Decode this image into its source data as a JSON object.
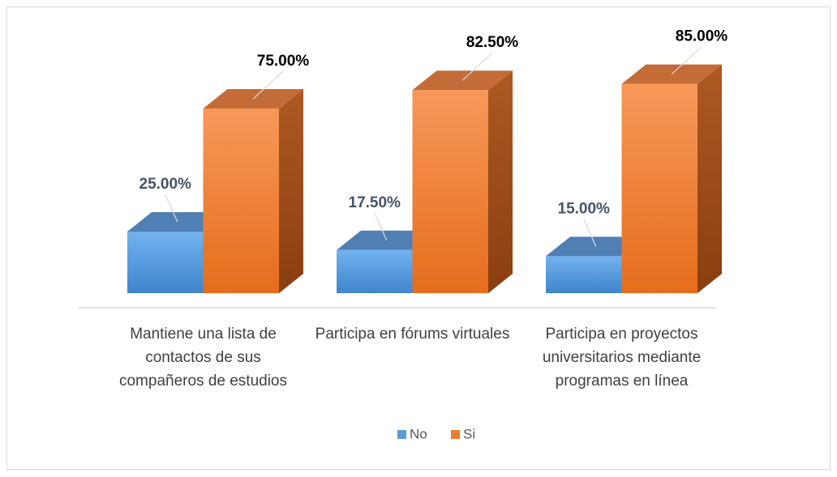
{
  "chart_data": {
    "type": "bar3d",
    "categories": [
      "Mantiene una lista de contactos de sus compañeros de estudios",
      "Participa en fórums virtuales",
      "Participa en proyectos universitarios mediante programas en línea"
    ],
    "series": [
      {
        "name": "No",
        "color": "#5b9bd5",
        "values": [
          25,
          17.5,
          15
        ],
        "value_labels": [
          "25.00%",
          "17.50%",
          "15.00%"
        ]
      },
      {
        "name": "Si",
        "color": "#ed7d31",
        "values": [
          75,
          82.5,
          85
        ],
        "value_labels": [
          "75.00%",
          "82.50%",
          "85.00%"
        ]
      }
    ],
    "legend": "bottom"
  }
}
